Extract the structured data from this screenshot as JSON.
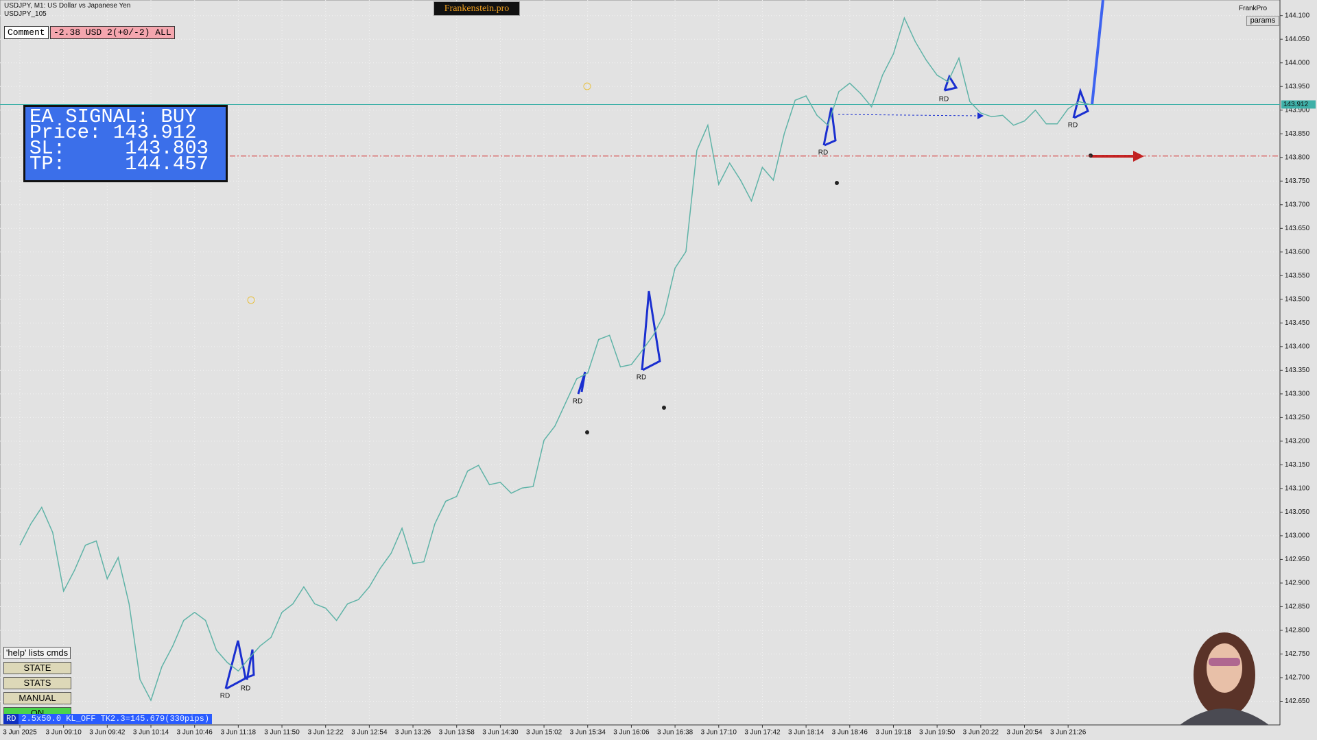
{
  "header": {
    "symbol": "USDJPY, M1:  US Dollar vs Japanese Yen",
    "account": "USDJPY_105",
    "brand": "Frankenstein.pro",
    "profile": "FrankPro",
    "params": "params"
  },
  "comment": {
    "label": "Comment",
    "value": "-2.38 USD 2(+0/-2) ALL"
  },
  "signal_box": {
    "lines": [
      "EA SIGNAL: BUY",
      "Price: 143.912",
      "SL:     143.803",
      "TP:     144.457"
    ]
  },
  "buttons": [
    "'help' lists cmds",
    "STATE",
    "STATS",
    "MANUAL",
    "ON"
  ],
  "status": {
    "tag": "RD",
    "text": "2.5x50.0 KL_OFF TK2.3=145.679(330pips)"
  },
  "annotations": [
    "RD",
    "RD",
    "RD",
    "RD",
    "RD",
    "RD",
    "RD"
  ],
  "chart_data": {
    "type": "line",
    "categories": [
      "3 Jun 2025",
      null,
      null,
      null,
      "3 Jun 09:10",
      null,
      null,
      null,
      "3 Jun 09:42",
      null,
      null,
      null,
      "3 Jun 10:14",
      null,
      null,
      null,
      "3 Jun 10:46",
      null,
      null,
      null,
      "3 Jun 11:18",
      null,
      null,
      null,
      "3 Jun 11:50",
      null,
      null,
      null,
      "3 Jun 12:22",
      null,
      null,
      null,
      "3 Jun 12:54",
      null,
      null,
      null,
      "3 Jun 13:26",
      null,
      null,
      null,
      "3 Jun 13:58",
      null,
      null,
      null,
      "3 Jun 14:30",
      null,
      null,
      null,
      "3 Jun 15:02",
      null,
      null,
      null,
      "3 Jun 15:34",
      null,
      null,
      null,
      "3 Jun 16:06",
      null,
      null,
      null,
      "3 Jun 16:38",
      null,
      null,
      null,
      "3 Jun 17:10",
      null,
      null,
      null,
      "3 Jun 17:42",
      null,
      null,
      null,
      "3 Jun 18:14",
      null,
      null,
      null,
      "3 Jun 18:46",
      null,
      null,
      null,
      "3 Jun 19:18",
      null,
      null,
      null,
      "3 Jun 19:50",
      null,
      null,
      null,
      "3 Jun 20:22",
      null,
      null,
      null,
      "3 Jun 20:54",
      null,
      null,
      null,
      "3 Jun 21:26",
      null,
      null
    ],
    "series": [
      {
        "name": "USDJPY",
        "color": "#5fb3a7",
        "values": [
          142.98,
          143.025,
          143.06,
          143.007,
          142.883,
          142.927,
          142.98,
          142.989,
          142.909,
          142.954,
          142.856,
          142.696,
          142.652,
          142.723,
          142.767,
          142.821,
          142.838,
          142.821,
          142.758,
          142.732,
          142.714,
          142.741,
          142.767,
          142.785,
          142.838,
          142.856,
          142.892,
          142.856,
          142.847,
          142.821,
          142.856,
          142.865,
          142.892,
          142.931,
          142.963,
          143.016,
          142.941,
          142.945,
          143.025,
          143.073,
          143.083,
          143.137,
          143.149,
          143.108,
          143.113,
          143.09,
          143.101,
          143.104,
          143.202,
          143.232,
          143.282,
          143.332,
          143.344,
          143.415,
          143.424,
          143.357,
          143.362,
          143.392,
          143.424,
          143.468,
          143.566,
          143.601,
          143.815,
          143.868,
          143.743,
          143.788,
          143.752,
          143.708,
          143.779,
          143.752,
          143.85,
          143.921,
          143.93,
          143.889,
          143.868,
          143.939,
          143.957,
          143.935,
          143.907,
          143.974,
          144.019,
          144.095,
          144.045,
          144.006,
          143.974,
          143.96,
          144.01,
          143.918,
          143.894,
          143.886,
          143.889,
          143.868,
          143.877,
          143.9,
          143.871,
          143.871,
          143.903,
          143.918,
          143.912
        ]
      }
    ],
    "ylim": [
      142.6,
      144.13
    ],
    "yticks": [
      {
        "value": 142.65,
        "label": "142.650"
      },
      {
        "value": 142.7,
        "label": "142.700"
      },
      {
        "value": 142.75,
        "label": "142.750"
      },
      {
        "value": 142.8,
        "label": "142.800"
      },
      {
        "value": 142.85,
        "label": "142.850"
      },
      {
        "value": 142.9,
        "label": "142.900"
      },
      {
        "value": 142.95,
        "label": "142.950"
      },
      {
        "value": 143,
        "label": "143.000"
      },
      {
        "value": 143.05,
        "label": "143.050"
      },
      {
        "value": 143.1,
        "label": "143.100"
      },
      {
        "value": 143.15,
        "label": "143.150"
      },
      {
        "value": 143.2,
        "label": "143.200"
      },
      {
        "value": 143.25,
        "label": "143.250"
      },
      {
        "value": 143.3,
        "label": "143.300"
      },
      {
        "value": 143.35,
        "label": "143.350"
      },
      {
        "value": 143.4,
        "label": "143.400"
      },
      {
        "value": 143.45,
        "label": "143.450"
      },
      {
        "value": 143.5,
        "label": "143.500"
      },
      {
        "value": 143.55,
        "label": "143.550"
      },
      {
        "value": 143.6,
        "label": "143.600"
      },
      {
        "value": 143.65,
        "label": "143.650"
      },
      {
        "value": 143.7,
        "label": "143.700"
      },
      {
        "value": 143.75,
        "label": "143.750"
      },
      {
        "value": 143.8,
        "label": "143.800"
      },
      {
        "value": 143.85,
        "label": "143.850"
      },
      {
        "value": 143.9,
        "label": "143.900"
      },
      {
        "value": 143.95,
        "label": "143.950"
      },
      {
        "value": 144,
        "label": "144.000"
      },
      {
        "value": 144.05,
        "label": "144.050"
      },
      {
        "value": 144.1,
        "label": "144.100"
      }
    ],
    "grid": true,
    "hlines": [
      {
        "value": 143.912,
        "color": "#3fb0a8"
      },
      {
        "value": 143.803,
        "color": "#d42a2a"
      }
    ]
  }
}
